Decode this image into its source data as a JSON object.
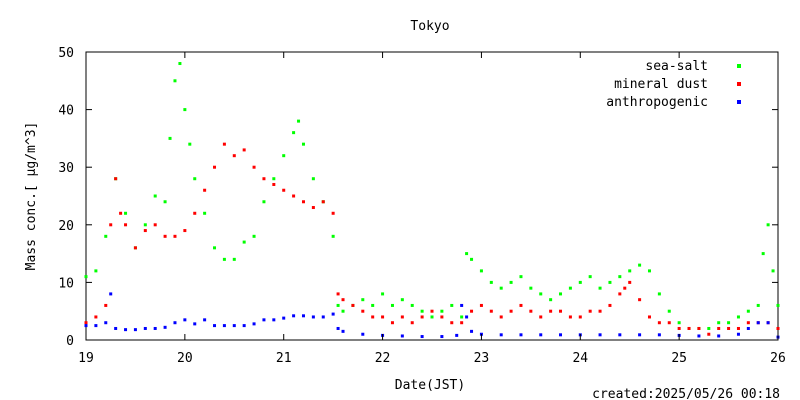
{
  "chart_data": {
    "type": "scatter",
    "title": "Tokyo",
    "xlabel": "Date(JST)",
    "ylabel_text": "Mass conc.[ μg/m^3]",
    "footer": "created:2025/05/26 00:18",
    "xlim": [
      19,
      26
    ],
    "ylim": [
      0,
      50
    ],
    "x_ticks": [
      19,
      20,
      21,
      22,
      23,
      24,
      25,
      26
    ],
    "y_ticks": [
      0,
      10,
      20,
      30,
      40,
      50
    ],
    "grid": false,
    "legend_position": "top-right",
    "series": [
      {
        "name": "sea-salt",
        "color": "#00ff00",
        "x": [
          19.0,
          19.1,
          19.2,
          19.3,
          19.4,
          19.5,
          19.6,
          19.7,
          19.8,
          19.85,
          19.9,
          19.95,
          20.0,
          20.05,
          20.1,
          20.2,
          20.3,
          20.4,
          20.5,
          20.6,
          20.7,
          20.8,
          20.9,
          21.0,
          21.1,
          21.15,
          21.2,
          21.3,
          21.4,
          21.5,
          21.55,
          21.6,
          21.7,
          21.8,
          21.9,
          22.0,
          22.1,
          22.2,
          22.3,
          22.4,
          22.5,
          22.6,
          22.7,
          22.8,
          22.85,
          22.9,
          23.0,
          23.1,
          23.2,
          23.3,
          23.4,
          23.5,
          23.6,
          23.7,
          23.8,
          23.9,
          24.0,
          24.1,
          24.2,
          24.3,
          24.4,
          24.5,
          24.6,
          24.7,
          24.8,
          24.9,
          25.0,
          25.1,
          25.2,
          25.3,
          25.4,
          25.5,
          25.6,
          25.7,
          25.8,
          25.85,
          25.9,
          25.95,
          26.0
        ],
        "y": [
          11,
          12,
          18,
          28,
          22,
          16,
          20,
          25,
          24,
          35,
          45,
          48,
          40,
          34,
          28,
          22,
          16,
          14,
          14,
          17,
          18,
          24,
          28,
          32,
          36,
          38,
          34,
          28,
          24,
          18,
          6,
          5,
          6,
          7,
          6,
          8,
          6,
          7,
          6,
          5,
          4,
          5,
          6,
          4,
          15,
          14,
          12,
          10,
          9,
          10,
          11,
          9,
          8,
          7,
          8,
          9,
          10,
          11,
          9,
          10,
          11,
          12,
          13,
          12,
          8,
          5,
          3,
          2,
          2,
          2,
          3,
          3,
          4,
          5,
          6,
          15,
          20,
          12,
          6
        ]
      },
      {
        "name": "mineral dust",
        "color": "#ff0000",
        "x": [
          19.0,
          19.1,
          19.2,
          19.25,
          19.3,
          19.35,
          19.4,
          19.5,
          19.6,
          19.7,
          19.8,
          19.9,
          20.0,
          20.1,
          20.2,
          20.3,
          20.4,
          20.5,
          20.6,
          20.7,
          20.8,
          20.9,
          21.0,
          21.1,
          21.2,
          21.3,
          21.4,
          21.5,
          21.55,
          21.6,
          21.7,
          21.8,
          21.9,
          22.0,
          22.1,
          22.2,
          22.3,
          22.4,
          22.5,
          22.6,
          22.7,
          22.8,
          22.9,
          23.0,
          23.1,
          23.2,
          23.3,
          23.4,
          23.5,
          23.6,
          23.7,
          23.8,
          23.9,
          24.0,
          24.1,
          24.2,
          24.3,
          24.4,
          24.45,
          24.5,
          24.6,
          24.7,
          24.8,
          24.9,
          25.0,
          25.1,
          25.2,
          25.3,
          25.4,
          25.5,
          25.6,
          25.7,
          25.8,
          25.9,
          26.0
        ],
        "y": [
          3,
          4,
          6,
          20,
          28,
          22,
          20,
          16,
          19,
          20,
          18,
          18,
          19,
          22,
          26,
          30,
          34,
          32,
          33,
          30,
          28,
          27,
          26,
          25,
          24,
          23,
          24,
          22,
          8,
          7,
          6,
          5,
          4,
          4,
          3,
          4,
          3,
          4,
          5,
          4,
          3,
          3,
          5,
          6,
          5,
          4,
          5,
          6,
          5,
          4,
          5,
          5,
          4,
          4,
          5,
          5,
          6,
          8,
          9,
          10,
          7,
          4,
          3,
          3,
          2,
          2,
          2,
          1,
          2,
          2,
          2,
          3,
          3,
          3,
          2
        ]
      },
      {
        "name": "anthropogenic",
        "color": "#0000ff",
        "x": [
          19.0,
          19.1,
          19.2,
          19.25,
          19.3,
          19.4,
          19.5,
          19.6,
          19.7,
          19.8,
          19.9,
          20.0,
          20.1,
          20.2,
          20.3,
          20.4,
          20.5,
          20.6,
          20.7,
          20.8,
          20.9,
          21.0,
          21.1,
          21.2,
          21.3,
          21.4,
          21.5,
          21.55,
          21.6,
          21.8,
          22.0,
          22.2,
          22.4,
          22.6,
          22.75,
          22.8,
          22.85,
          22.9,
          23.0,
          23.2,
          23.4,
          23.6,
          23.8,
          24.0,
          24.2,
          24.4,
          24.6,
          24.8,
          25.0,
          25.2,
          25.4,
          25.6,
          25.7,
          25.8,
          25.9,
          26.0
        ],
        "y": [
          2.5,
          2.5,
          3,
          8,
          2,
          1.8,
          1.8,
          2,
          2,
          2.2,
          3,
          3.5,
          2.8,
          3.5,
          2.5,
          2.5,
          2.5,
          2.5,
          2.8,
          3.5,
          3.5,
          3.8,
          4.2,
          4.2,
          4,
          4,
          4.5,
          2,
          1.5,
          1,
          0.8,
          0.7,
          0.6,
          0.6,
          0.8,
          6,
          4,
          1.5,
          1,
          0.9,
          0.9,
          0.9,
          0.9,
          0.9,
          0.9,
          0.9,
          0.9,
          0.9,
          0.8,
          0.7,
          0.7,
          1,
          2,
          3,
          3,
          0.5
        ]
      }
    ]
  }
}
